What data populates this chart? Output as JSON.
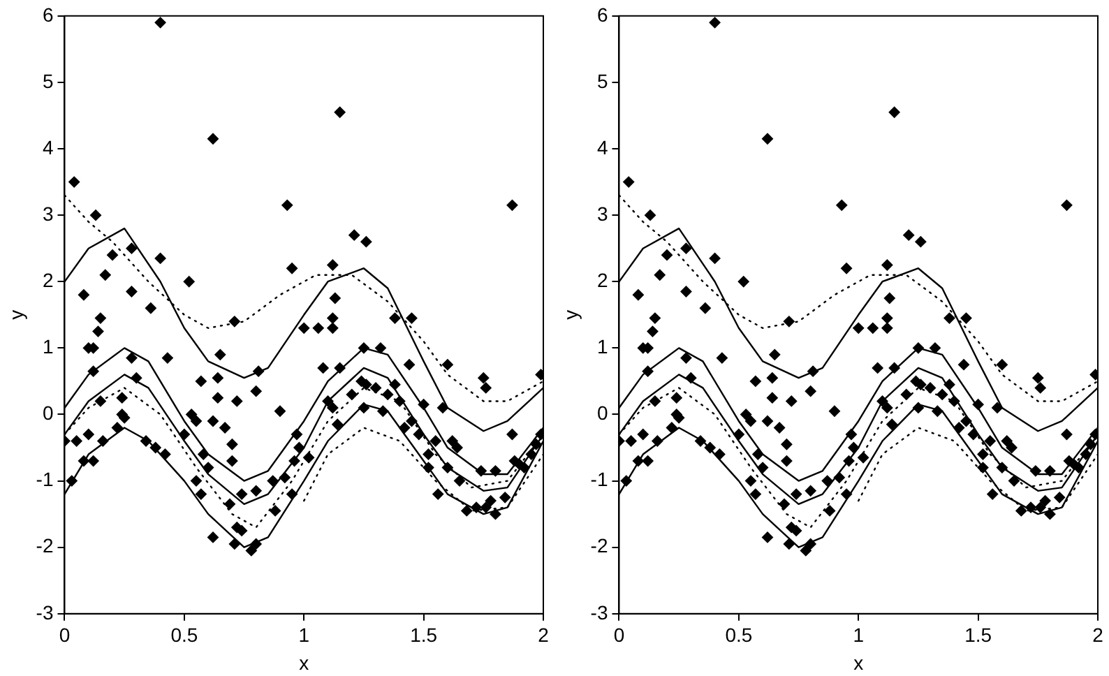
{
  "chart_data": [
    {
      "type": "scatter",
      "xlabel": "x",
      "ylabel": "y",
      "xlim": [
        0,
        2
      ],
      "ylim": [
        -3,
        6
      ],
      "xticks": [
        0,
        0.5,
        1,
        1.5,
        2
      ],
      "yticks": [
        -3,
        -2,
        -1,
        0,
        1,
        2,
        3,
        4,
        5,
        6
      ],
      "grid": false,
      "legend": false,
      "series": [
        {
          "type": "scatter",
          "color": "#000000",
          "marker": "diamond",
          "x": [
            0.04,
            0.13,
            0.4,
            0.62,
            1.15,
            0.93,
            1.87,
            0.2,
            0.28,
            0.17,
            0.08,
            0.28,
            0.15,
            0.14,
            0.4,
            0.52,
            0.36,
            0.1,
            0.12,
            0.43,
            0.57,
            0.65,
            0.64,
            0.71,
            0.81,
            0.95,
            1.12,
            1.21,
            1.26,
            1.13,
            1.12,
            1.0,
            1.06,
            1.12,
            1.38,
            1.45,
            1.44,
            1.6,
            1.25,
            1.32,
            1.75,
            1.76,
            1.99,
            1.87,
            0.12,
            0.15,
            0.24,
            0.28,
            0.3,
            0.24,
            0.25,
            0.22,
            0.0,
            0.05,
            0.1,
            0.16,
            0.08,
            0.12,
            0.03,
            0.34,
            0.38,
            0.42,
            0.5,
            0.53,
            0.55,
            0.62,
            0.67,
            0.64,
            0.72,
            0.8,
            0.9,
            0.7,
            0.7,
            0.58,
            0.55,
            0.57,
            0.6,
            0.74,
            0.69,
            0.8,
            0.87,
            0.72,
            0.74,
            0.62,
            0.71,
            0.78,
            0.8,
            0.88,
            0.92,
            0.95,
            0.96,
            0.98,
            0.97,
            1.02,
            1.08,
            1.1,
            1.12,
            1.14,
            1.15,
            1.2,
            1.24,
            1.25,
            1.26,
            1.3,
            1.33,
            1.35,
            1.38,
            1.4,
            1.42,
            1.45,
            1.48,
            1.5,
            1.52,
            1.55,
            1.58,
            1.62,
            1.64,
            1.6,
            1.65,
            1.68,
            1.72,
            1.76,
            1.8,
            1.78,
            1.74,
            1.8,
            1.84,
            1.88,
            1.9,
            1.92,
            1.95,
            1.97,
            1.99,
            1.52,
            1.56
          ],
          "values": [
            3.5,
            3.0,
            5.9,
            4.15,
            4.55,
            3.15,
            3.15,
            2.4,
            2.5,
            2.1,
            1.8,
            1.85,
            1.45,
            1.25,
            2.35,
            2.0,
            1.6,
            1.0,
            1.0,
            0.85,
            0.5,
            0.9,
            0.55,
            1.4,
            0.65,
            2.2,
            2.25,
            2.7,
            2.6,
            1.75,
            1.45,
            1.3,
            1.3,
            1.3,
            1.45,
            1.45,
            0.75,
            0.75,
            1.0,
            1.0,
            0.55,
            0.4,
            0.6,
            -0.3,
            0.65,
            0.2,
            0.25,
            0.85,
            0.55,
            0.0,
            -0.05,
            -0.2,
            -0.4,
            -0.4,
            -0.3,
            -0.4,
            -0.7,
            -0.7,
            -1.0,
            -0.4,
            -0.5,
            -0.6,
            -0.3,
            0.0,
            -0.1,
            -0.1,
            -0.2,
            0.25,
            0.2,
            0.35,
            0.05,
            -0.45,
            -0.7,
            -0.6,
            -1.0,
            -1.2,
            -0.8,
            -1.2,
            -1.35,
            -1.15,
            -1.0,
            -1.7,
            -1.75,
            -1.85,
            -1.95,
            -2.05,
            -1.95,
            -1.45,
            -0.95,
            -1.2,
            -0.7,
            -0.5,
            -0.3,
            -0.65,
            0.7,
            0.2,
            0.1,
            -0.15,
            0.7,
            0.3,
            0.5,
            0.1,
            0.45,
            0.4,
            0.05,
            0.3,
            0.45,
            0.2,
            -0.2,
            -0.1,
            -0.3,
            0.15,
            -0.6,
            -0.4,
            0.1,
            -0.4,
            -0.5,
            -0.8,
            -1.0,
            -1.45,
            -1.4,
            -1.4,
            -1.5,
            -1.3,
            -0.85,
            -0.85,
            -1.25,
            -0.7,
            -0.75,
            -0.8,
            -0.6,
            -0.45,
            -0.3,
            -0.8,
            -1.2
          ]
        },
        {
          "type": "line",
          "color": "#000000",
          "line_style": "solid",
          "x": [
            0,
            0.1,
            0.25,
            0.4,
            0.5,
            0.6,
            0.75,
            0.85,
            1.0,
            1.1,
            1.25,
            1.35,
            1.5,
            1.6,
            1.75,
            1.85,
            2.0
          ],
          "values": [
            2.0,
            2.5,
            2.8,
            2.0,
            1.3,
            0.8,
            0.55,
            0.7,
            1.5,
            2.0,
            2.2,
            1.9,
            0.8,
            0.1,
            -0.25,
            -0.1,
            0.4
          ]
        },
        {
          "type": "line",
          "color": "#000000",
          "line_style": "solid",
          "x": [
            0,
            0.1,
            0.25,
            0.35,
            0.5,
            0.6,
            0.75,
            0.85,
            1.0,
            1.1,
            1.25,
            1.35,
            1.5,
            1.6,
            1.75,
            1.85,
            2.0
          ],
          "values": [
            0.1,
            0.6,
            1.0,
            0.8,
            -0.1,
            -0.6,
            -1.0,
            -0.85,
            -0.1,
            0.5,
            1.0,
            0.9,
            0.1,
            -0.5,
            -0.9,
            -0.9,
            -0.2
          ]
        },
        {
          "type": "line",
          "color": "#000000",
          "line_style": "solid",
          "x": [
            0,
            0.1,
            0.25,
            0.35,
            0.5,
            0.6,
            0.75,
            0.85,
            1.0,
            1.1,
            1.25,
            1.35,
            1.5,
            1.6,
            1.75,
            1.85,
            2.0
          ],
          "values": [
            -0.3,
            0.2,
            0.6,
            0.4,
            -0.4,
            -0.9,
            -1.35,
            -1.2,
            -0.5,
            0.2,
            0.7,
            0.55,
            -0.3,
            -0.8,
            -1.15,
            -1.1,
            -0.3
          ]
        },
        {
          "type": "line",
          "color": "#000000",
          "line_style": "solid",
          "x": [
            0,
            0.1,
            0.25,
            0.35,
            0.5,
            0.6,
            0.75,
            0.85,
            1.0,
            1.1,
            1.25,
            1.35,
            1.5,
            1.6,
            1.75,
            1.85,
            2.0
          ],
          "values": [
            -1.2,
            -0.6,
            -0.2,
            -0.4,
            -1.0,
            -1.5,
            -2.0,
            -1.85,
            -1.0,
            -0.4,
            0.15,
            0.05,
            -0.7,
            -1.2,
            -1.5,
            -1.4,
            -0.4
          ]
        },
        {
          "type": "line",
          "color": "#000000",
          "line_style": "dotted",
          "x": [
            0,
            0.1,
            0.2,
            0.35,
            0.5,
            0.6,
            0.75,
            0.9,
            1.05,
            1.2,
            1.35,
            1.5,
            1.6,
            1.75,
            1.85,
            2.0
          ],
          "values": [
            3.3,
            2.9,
            2.6,
            2.0,
            1.5,
            1.3,
            1.4,
            1.8,
            2.1,
            2.1,
            1.7,
            1.1,
            0.6,
            0.2,
            0.2,
            0.5
          ]
        },
        {
          "type": "line",
          "color": "#000000",
          "line_style": "dotted",
          "x": [
            0,
            0.1,
            0.25,
            0.4,
            0.55,
            0.7,
            0.8,
            0.95,
            1.1,
            1.25,
            1.4,
            1.55,
            1.7,
            1.85,
            2.0
          ],
          "values": [
            -0.3,
            0.1,
            0.4,
            0.0,
            -0.8,
            -1.5,
            -1.7,
            -1.0,
            -0.1,
            0.4,
            0.2,
            -0.6,
            -1.1,
            -1.0,
            -0.3
          ]
        },
        {
          "type": "line",
          "color": "#000000",
          "line_style": "dotted",
          "x": [
            1.0,
            1.1,
            1.25,
            1.4,
            1.55,
            1.7,
            1.85,
            2.0
          ],
          "values": [
            -1.3,
            -0.6,
            -0.2,
            -0.4,
            -1.0,
            -1.45,
            -1.4,
            -0.6
          ]
        }
      ]
    },
    {
      "type": "scatter",
      "xlabel": "x",
      "ylabel": "y",
      "xlim": [
        0,
        2
      ],
      "ylim": [
        -3,
        6
      ],
      "xticks": [
        0,
        0.5,
        1,
        1.5,
        2
      ],
      "yticks": [
        -3,
        -2,
        -1,
        0,
        1,
        2,
        3,
        4,
        5,
        6
      ],
      "grid": false,
      "legend": false,
      "series": [
        {
          "type": "scatter",
          "color": "#000000",
          "marker": "diamond",
          "x": [
            0.04,
            0.13,
            0.4,
            0.62,
            1.15,
            0.93,
            1.87,
            0.2,
            0.28,
            0.17,
            0.08,
            0.28,
            0.15,
            0.14,
            0.4,
            0.52,
            0.36,
            0.1,
            0.12,
            0.43,
            0.57,
            0.65,
            0.64,
            0.71,
            0.81,
            0.95,
            1.12,
            1.21,
            1.26,
            1.13,
            1.12,
            1.0,
            1.06,
            1.12,
            1.38,
            1.45,
            1.44,
            1.6,
            1.25,
            1.32,
            1.75,
            1.76,
            1.99,
            1.87,
            0.12,
            0.15,
            0.24,
            0.28,
            0.3,
            0.24,
            0.25,
            0.22,
            0.0,
            0.05,
            0.1,
            0.16,
            0.08,
            0.12,
            0.03,
            0.34,
            0.38,
            0.42,
            0.5,
            0.53,
            0.55,
            0.62,
            0.67,
            0.64,
            0.72,
            0.8,
            0.9,
            0.7,
            0.7,
            0.58,
            0.55,
            0.57,
            0.6,
            0.74,
            0.69,
            0.8,
            0.87,
            0.72,
            0.74,
            0.62,
            0.71,
            0.78,
            0.8,
            0.88,
            0.92,
            0.95,
            0.96,
            0.98,
            0.97,
            1.02,
            1.08,
            1.1,
            1.12,
            1.14,
            1.15,
            1.2,
            1.24,
            1.25,
            1.26,
            1.3,
            1.33,
            1.35,
            1.38,
            1.4,
            1.42,
            1.45,
            1.48,
            1.5,
            1.52,
            1.55,
            1.58,
            1.62,
            1.64,
            1.6,
            1.65,
            1.68,
            1.72,
            1.76,
            1.8,
            1.78,
            1.74,
            1.8,
            1.84,
            1.88,
            1.9,
            1.92,
            1.95,
            1.97,
            1.99,
            1.52,
            1.56
          ],
          "values": [
            3.5,
            3.0,
            5.9,
            4.15,
            4.55,
            3.15,
            3.15,
            2.4,
            2.5,
            2.1,
            1.8,
            1.85,
            1.45,
            1.25,
            2.35,
            2.0,
            1.6,
            1.0,
            1.0,
            0.85,
            0.5,
            0.9,
            0.55,
            1.4,
            0.65,
            2.2,
            2.25,
            2.7,
            2.6,
            1.75,
            1.45,
            1.3,
            1.3,
            1.3,
            1.45,
            1.45,
            0.75,
            0.75,
            1.0,
            1.0,
            0.55,
            0.4,
            0.6,
            -0.3,
            0.65,
            0.2,
            0.25,
            0.85,
            0.55,
            0.0,
            -0.05,
            -0.2,
            -0.4,
            -0.4,
            -0.3,
            -0.4,
            -0.7,
            -0.7,
            -1.0,
            -0.4,
            -0.5,
            -0.6,
            -0.3,
            0.0,
            -0.1,
            -0.1,
            -0.2,
            0.25,
            0.2,
            0.35,
            0.05,
            -0.45,
            -0.7,
            -0.6,
            -1.0,
            -1.2,
            -0.8,
            -1.2,
            -1.35,
            -1.15,
            -1.0,
            -1.7,
            -1.75,
            -1.85,
            -1.95,
            -2.05,
            -1.95,
            -1.45,
            -0.95,
            -1.2,
            -0.7,
            -0.5,
            -0.3,
            -0.65,
            0.7,
            0.2,
            0.1,
            -0.15,
            0.7,
            0.3,
            0.5,
            0.1,
            0.45,
            0.4,
            0.05,
            0.3,
            0.45,
            0.2,
            -0.2,
            -0.1,
            -0.3,
            0.15,
            -0.6,
            -0.4,
            0.1,
            -0.4,
            -0.5,
            -0.8,
            -1.0,
            -1.45,
            -1.4,
            -1.4,
            -1.5,
            -1.3,
            -0.85,
            -0.85,
            -1.25,
            -0.7,
            -0.75,
            -0.8,
            -0.6,
            -0.45,
            -0.3,
            -0.8,
            -1.2
          ]
        },
        {
          "type": "line",
          "color": "#000000",
          "line_style": "solid",
          "x": [
            0,
            0.1,
            0.25,
            0.4,
            0.5,
            0.6,
            0.75,
            0.85,
            1.0,
            1.1,
            1.25,
            1.35,
            1.5,
            1.6,
            1.75,
            1.85,
            2.0
          ],
          "values": [
            2.0,
            2.5,
            2.8,
            2.0,
            1.3,
            0.8,
            0.55,
            0.7,
            1.5,
            2.0,
            2.2,
            1.9,
            0.8,
            0.1,
            -0.25,
            -0.1,
            0.4
          ]
        },
        {
          "type": "line",
          "color": "#000000",
          "line_style": "solid",
          "x": [
            0,
            0.1,
            0.25,
            0.35,
            0.5,
            0.6,
            0.75,
            0.85,
            1.0,
            1.1,
            1.25,
            1.35,
            1.5,
            1.6,
            1.75,
            1.85,
            2.0
          ],
          "values": [
            0.1,
            0.6,
            1.0,
            0.8,
            -0.1,
            -0.6,
            -1.0,
            -0.85,
            -0.1,
            0.5,
            1.0,
            0.9,
            0.1,
            -0.5,
            -0.9,
            -0.9,
            -0.2
          ]
        },
        {
          "type": "line",
          "color": "#000000",
          "line_style": "solid",
          "x": [
            0,
            0.1,
            0.25,
            0.35,
            0.5,
            0.6,
            0.75,
            0.85,
            1.0,
            1.1,
            1.25,
            1.35,
            1.5,
            1.6,
            1.75,
            1.85,
            2.0
          ],
          "values": [
            -0.3,
            0.2,
            0.6,
            0.4,
            -0.4,
            -0.9,
            -1.35,
            -1.2,
            -0.5,
            0.2,
            0.7,
            0.55,
            -0.3,
            -0.8,
            -1.15,
            -1.1,
            -0.3
          ]
        },
        {
          "type": "line",
          "color": "#000000",
          "line_style": "solid",
          "x": [
            0,
            0.1,
            0.25,
            0.35,
            0.5,
            0.6,
            0.75,
            0.85,
            1.0,
            1.1,
            1.25,
            1.35,
            1.5,
            1.6,
            1.75,
            1.85,
            2.0
          ],
          "values": [
            -1.2,
            -0.6,
            -0.2,
            -0.4,
            -1.0,
            -1.5,
            -2.0,
            -1.85,
            -1.0,
            -0.4,
            0.15,
            0.05,
            -0.7,
            -1.2,
            -1.5,
            -1.4,
            -0.4
          ]
        },
        {
          "type": "line",
          "color": "#000000",
          "line_style": "dotted",
          "x": [
            0,
            0.1,
            0.2,
            0.35,
            0.5,
            0.6,
            0.75,
            0.9,
            1.05,
            1.2,
            1.35,
            1.5,
            1.6,
            1.75,
            1.85,
            2.0
          ],
          "values": [
            3.3,
            2.9,
            2.6,
            2.0,
            1.5,
            1.3,
            1.4,
            1.8,
            2.1,
            2.1,
            1.7,
            1.1,
            0.6,
            0.2,
            0.2,
            0.5
          ]
        },
        {
          "type": "line",
          "color": "#000000",
          "line_style": "dotted",
          "x": [
            0,
            0.1,
            0.25,
            0.4,
            0.55,
            0.7,
            0.8,
            0.95,
            1.1,
            1.25,
            1.4,
            1.55,
            1.7,
            1.85,
            2.0
          ],
          "values": [
            -0.3,
            0.1,
            0.4,
            0.0,
            -0.8,
            -1.5,
            -1.7,
            -1.0,
            -0.1,
            0.4,
            0.2,
            -0.6,
            -1.1,
            -1.0,
            -0.3
          ]
        },
        {
          "type": "line",
          "color": "#000000",
          "line_style": "dotted",
          "x": [
            1.0,
            1.1,
            1.25,
            1.4,
            1.55,
            1.7,
            1.85,
            2.0
          ],
          "values": [
            -1.3,
            -0.6,
            -0.2,
            -0.4,
            -1.0,
            -1.45,
            -1.4,
            -0.6
          ]
        }
      ]
    }
  ]
}
